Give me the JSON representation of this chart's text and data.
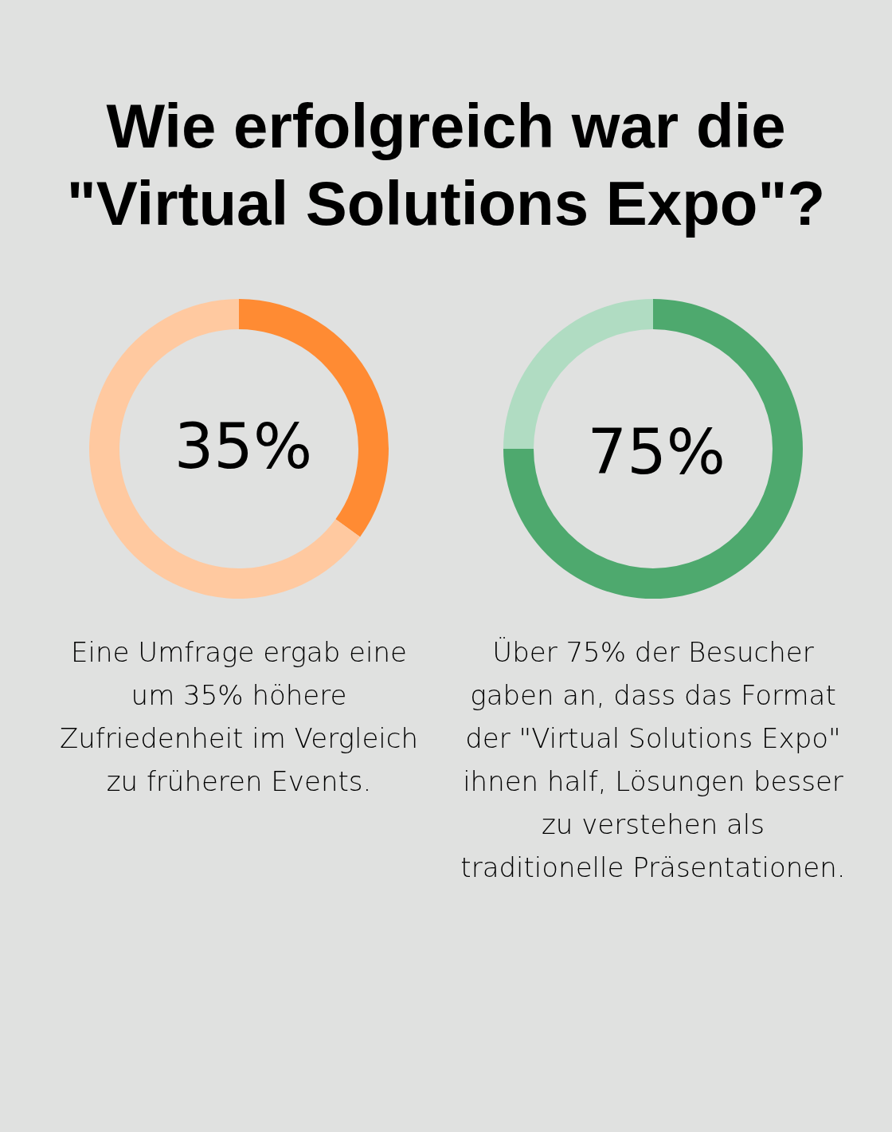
{
  "chart_data": [
    {
      "type": "donut",
      "title": "Wie erfolgreich war die \"Virtual Solutions Expo\"?",
      "categories": [
        null,
        null
      ],
      "values": [
        35,
        65
      ],
      "colors": [
        "#ff8b33",
        "#ffc9a0"
      ],
      "value_labels": [
        "35%",
        null
      ],
      "annotations": [
        "Eine Umfrage ergab eine um 35% höhere Zufriedenheit im Vergleich zu früheren Events."
      ]
    },
    {
      "type": "donut",
      "categories": [
        null,
        null
      ],
      "values": [
        75,
        25
      ],
      "colors": [
        "#4ea96e",
        "#b0dcc2"
      ],
      "value_labels": [
        "75%",
        null
      ],
      "annotations": [
        "Über 75% der Besucher gaben an, dass das Format der \"Virtual Solutions Expo\" ihnen half, Lösungen besser zu verstehen als traditionelle Präsentationen."
      ]
    }
  ]
}
